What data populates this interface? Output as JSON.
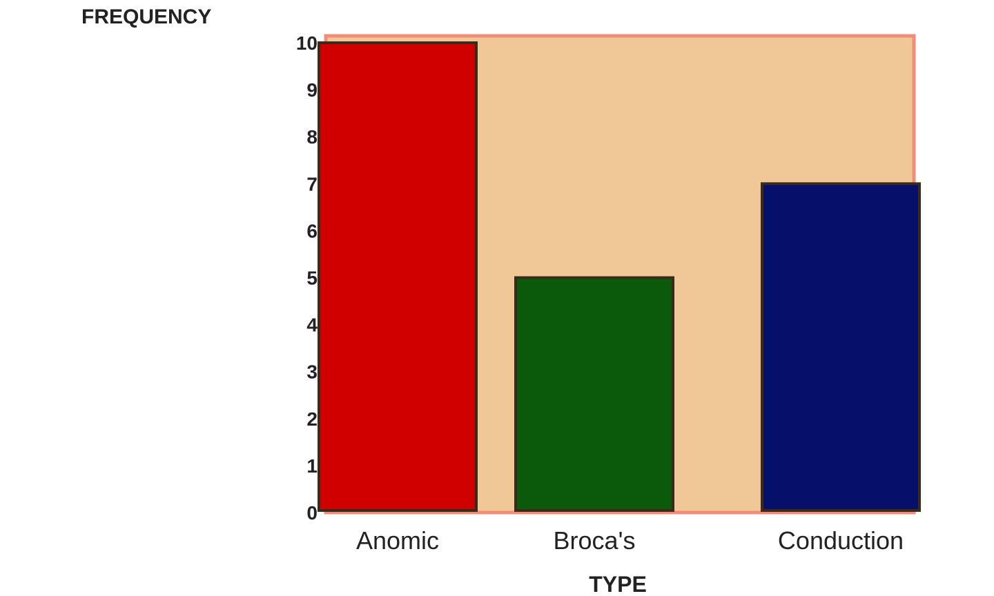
{
  "chart_data": {
    "type": "bar",
    "categories": [
      "Anomic",
      "Broca's",
      "Conduction"
    ],
    "values": [
      10,
      5,
      7
    ],
    "title": "",
    "xlabel": "TYPE",
    "ylabel": "FREQUENCY",
    "ylim": [
      0,
      10
    ],
    "yticks": [
      0,
      1,
      2,
      3,
      4,
      5,
      6,
      7,
      8,
      9,
      10
    ],
    "grid": false,
    "legend": "none",
    "colors": {
      "bars": [
        "#d10000",
        "#0b5a0b",
        "#06106a"
      ],
      "plot_background": "#f0c797",
      "plot_border": "#f08c78",
      "bar_outline": "#3a2a1a"
    }
  }
}
